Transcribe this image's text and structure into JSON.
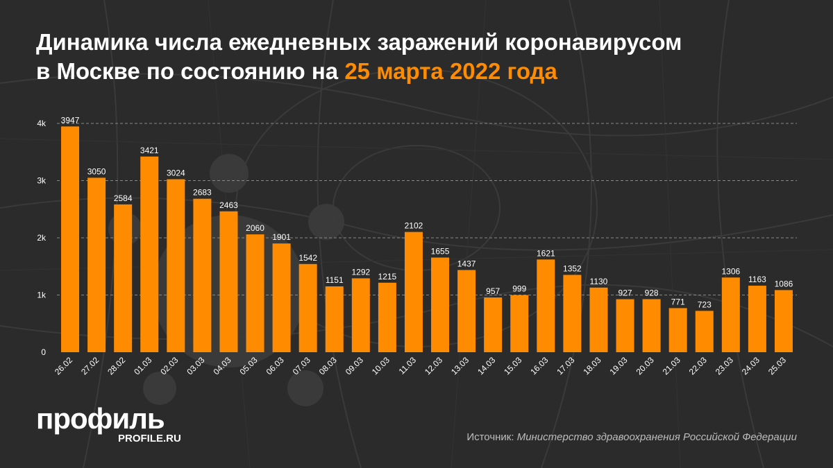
{
  "header": {
    "title_main": "Динамика числа ежедневных заражений коронавирусом",
    "title_line2": "в Москве по состоянию на ",
    "title_highlight": "25 марта 2022 года"
  },
  "colors": {
    "background": "#2b2b2b",
    "bar": "#ff8c00",
    "highlight": "#ff8c00",
    "grid": "#8a8a8a",
    "text": "#ffffff"
  },
  "chart_data": {
    "type": "bar",
    "categories": [
      "26.02",
      "27.02",
      "28.02",
      "01.03",
      "02.03",
      "03.03",
      "04.03",
      "05.03",
      "06.03",
      "07.03",
      "08.03",
      "09.03",
      "10.03",
      "11.03",
      "12.03",
      "13.03",
      "14.03",
      "15.03",
      "16.03",
      "17.03",
      "18.03",
      "19.03",
      "20.03",
      "21.03",
      "22.03",
      "23.03",
      "24.03",
      "25.03"
    ],
    "values": [
      3947,
      3050,
      2584,
      3421,
      3024,
      2683,
      2463,
      2060,
      1901,
      1542,
      1151,
      1292,
      1215,
      2102,
      1655,
      1437,
      957,
      999,
      1621,
      1352,
      1130,
      927,
      928,
      771,
      723,
      1306,
      1163,
      1086
    ],
    "yticks": [
      0,
      1000,
      2000,
      3000,
      4000
    ],
    "ytick_labels": [
      "0",
      "1k",
      "2k",
      "3k",
      "4k"
    ],
    "ylim": [
      0,
      4000
    ],
    "grid": true,
    "xlabel": "",
    "ylabel": ""
  },
  "footer": {
    "logo": "профиль",
    "logo_url": "PROFILE.RU",
    "source_prefix": "Источник: ",
    "source_text": "Министерство здравоохранения Российской Федерации"
  }
}
